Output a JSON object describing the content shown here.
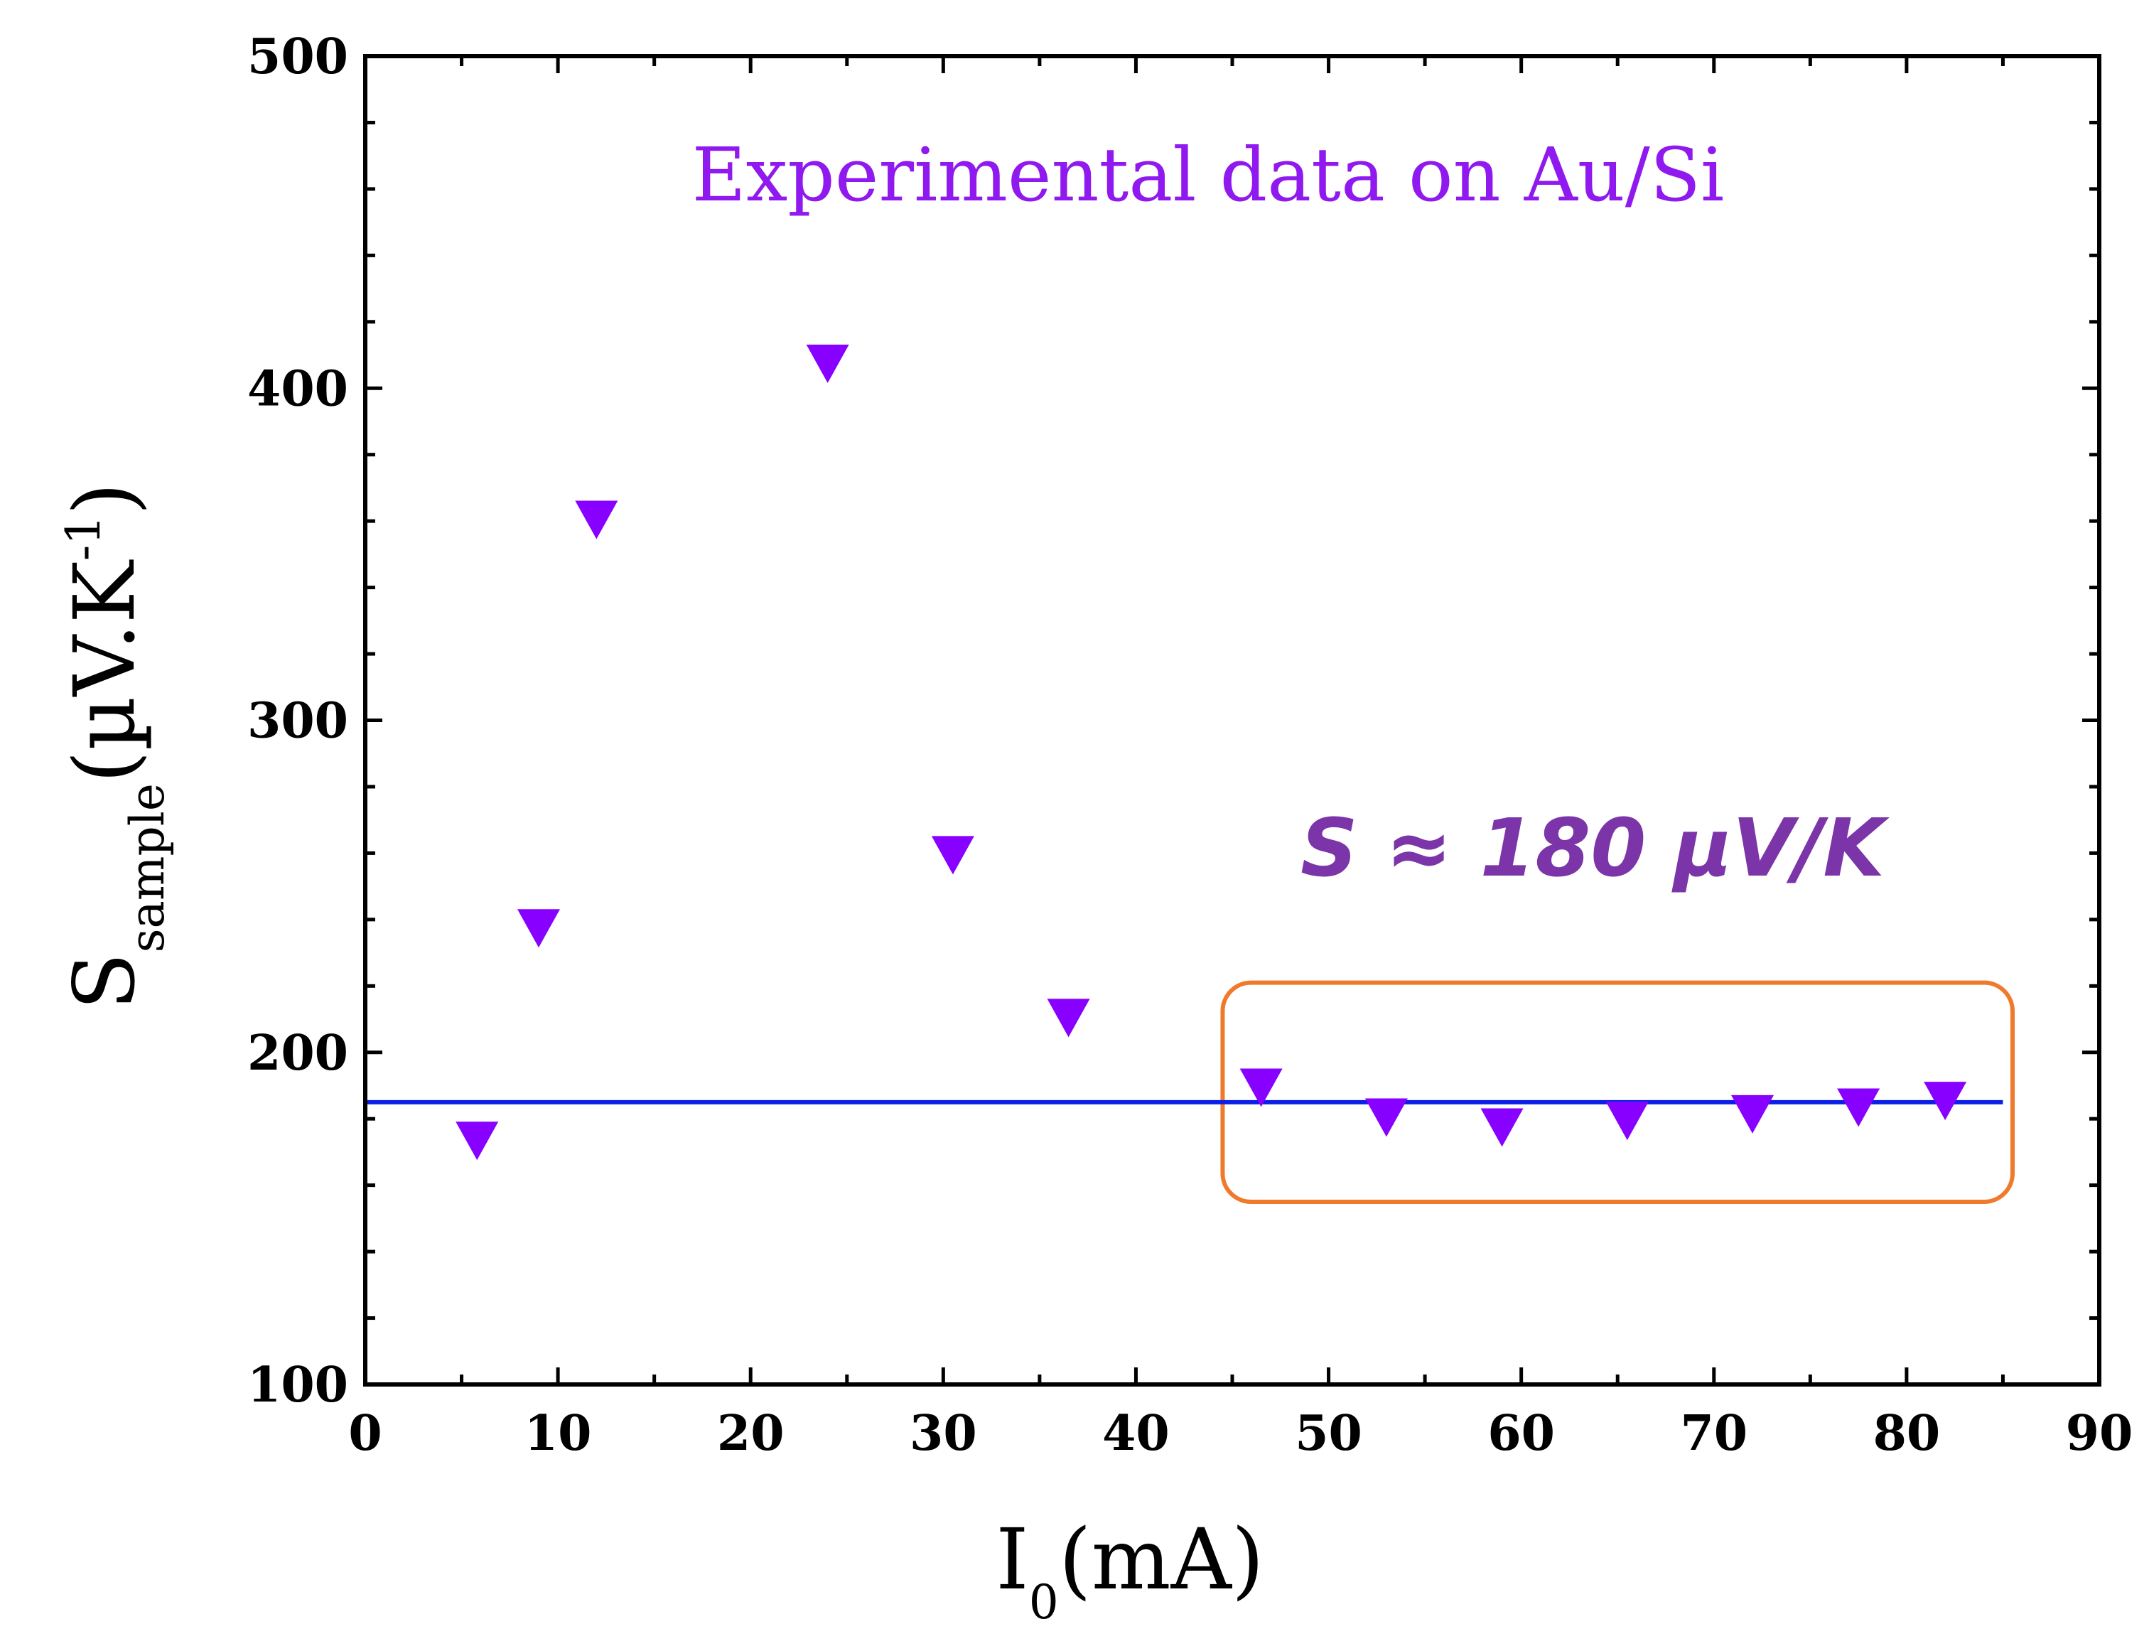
{
  "chart_data": {
    "type": "scatter",
    "title": "Experimental data on Au/Si",
    "xlabel": {
      "main": "I",
      "sub": "0",
      "rest": "(mA)"
    },
    "ylabel": {
      "main": "S",
      "sub": "sample",
      "rest_open": "(µV.K",
      "sup": "-1",
      "rest_close": ")"
    },
    "xlim": [
      0,
      90
    ],
    "ylim": [
      100,
      500
    ],
    "x_major_ticks": [
      0,
      10,
      20,
      30,
      40,
      50,
      60,
      70,
      80,
      90
    ],
    "x_tick_labels": [
      "0",
      "10",
      "20",
      "30",
      "40",
      "50",
      "60",
      "70",
      "80",
      "90"
    ],
    "y_major_ticks": [
      100,
      200,
      300,
      400,
      500
    ],
    "y_tick_labels": [
      "100",
      "200",
      "300",
      "400",
      "500"
    ],
    "marker": "down-triangle",
    "series": [
      {
        "name": "Experimental data on Au/Si",
        "color": "#8800ff",
        "x": [
          5.8,
          9.0,
          12.0,
          24.0,
          30.5,
          36.5,
          46.5,
          53.0,
          59.0,
          65.5,
          72.0,
          77.5,
          82.0
        ],
        "y": [
          174,
          238,
          361,
          408,
          260,
          211,
          190,
          181,
          178,
          180,
          182,
          184,
          186
        ]
      }
    ],
    "fit_line": {
      "y": 185,
      "x_range": [
        0,
        85
      ],
      "color": "#0a1ee8"
    },
    "highlight_box": {
      "x_range": [
        44.5,
        85.5
      ],
      "y_range": [
        155,
        221
      ],
      "color": "#f07a2c"
    },
    "annotations": [
      {
        "text": "S ≈ 180 µV/K",
        "x": 44,
        "y": 264,
        "color": "#7b35a8"
      }
    ],
    "title_color": "#8f19ee"
  }
}
